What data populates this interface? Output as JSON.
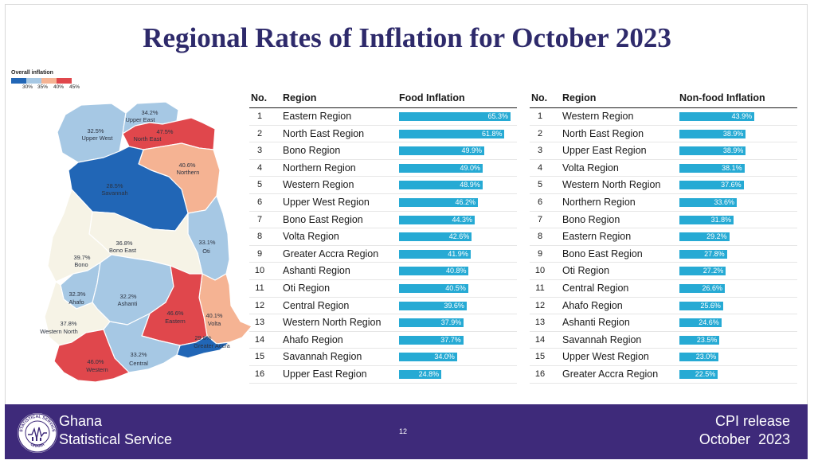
{
  "slide": {
    "title": "Regional Rates of Inflation for October 2023",
    "page_number": "12"
  },
  "map_legend": {
    "title": "Overall inflation",
    "ticks": [
      "30%",
      "35%",
      "40%",
      "45%"
    ],
    "colors": [
      "#2166b6",
      "#a6c8e4",
      "#f5b393",
      "#e0474c"
    ]
  },
  "map": {
    "regions": [
      {
        "name": "Upper East",
        "value": "34.2%",
        "color": "#a6c8e4"
      },
      {
        "name": "Upper West",
        "value": "32.5%",
        "color": "#a6c8e4"
      },
      {
        "name": "North East",
        "value": "47.5%",
        "color": "#e0474c"
      },
      {
        "name": "Northern",
        "value": "40.6%",
        "color": "#f5b393"
      },
      {
        "name": "Savannah",
        "value": "28.5%",
        "color": "#2166b6"
      },
      {
        "name": "Bono East",
        "value": "36.8%",
        "color": "#f6f3e6"
      },
      {
        "name": "Oti",
        "value": "33.1%",
        "color": "#a6c8e4"
      },
      {
        "name": "Bono",
        "value": "39.7%",
        "color": "#f6f3e6"
      },
      {
        "name": "Ahafo",
        "value": "32.3%",
        "color": "#a6c8e4"
      },
      {
        "name": "Ashanti",
        "value": "32.2%",
        "color": "#a6c8e4"
      },
      {
        "name": "Eastern",
        "value": "46.6%",
        "color": "#e0474c"
      },
      {
        "name": "Volta",
        "value": "40.1%",
        "color": "#f5b393"
      },
      {
        "name": "Western North",
        "value": "37.8%",
        "color": "#f6f3e6"
      },
      {
        "name": "Greater Accra",
        "value": "29.8%",
        "color": "#2166b6"
      },
      {
        "name": "Central",
        "value": "33.2%",
        "color": "#a6c8e4"
      },
      {
        "name": "Western",
        "value": "46.0%",
        "color": "#e0474c"
      }
    ]
  },
  "food_table": {
    "headers": {
      "no": "No.",
      "region": "Region",
      "value": "Food Inflation"
    },
    "rows": [
      {
        "no": "1",
        "region": "Eastern Region",
        "label": "65.3%"
      },
      {
        "no": "2",
        "region": "North East Region",
        "label": "61.8%"
      },
      {
        "no": "3",
        "region": "Bono Region",
        "label": "49.9%"
      },
      {
        "no": "4",
        "region": "Northern Region",
        "label": "49.0%"
      },
      {
        "no": "5",
        "region": "Western Region",
        "label": "48.9%"
      },
      {
        "no": "6",
        "region": "Upper West Region",
        "label": "46.2%"
      },
      {
        "no": "7",
        "region": "Bono East Region",
        "label": "44.3%"
      },
      {
        "no": "8",
        "region": "Volta Region",
        "label": "42.6%"
      },
      {
        "no": "9",
        "region": "Greater Accra Region",
        "label": "41.9%"
      },
      {
        "no": "10",
        "region": "Ashanti Region",
        "label": "40.8%"
      },
      {
        "no": "11",
        "region": "Oti Region",
        "label": "40.5%"
      },
      {
        "no": "12",
        "region": "Central Region",
        "label": "39.6%"
      },
      {
        "no": "13",
        "region": "Western North Region",
        "label": "37.9%"
      },
      {
        "no": "14",
        "region": "Ahafo Region",
        "label": "37.7%"
      },
      {
        "no": "15",
        "region": "Savannah Region",
        "label": "34.0%"
      },
      {
        "no": "16",
        "region": "Upper East Region",
        "label": "24.8%"
      }
    ]
  },
  "nonfood_table": {
    "headers": {
      "no": "No.",
      "region": "Region",
      "value": "Non-food Inflation"
    },
    "rows": [
      {
        "no": "1",
        "region": "Western Region",
        "label": "43.9%"
      },
      {
        "no": "2",
        "region": "North East Region",
        "label": "38.9%"
      },
      {
        "no": "3",
        "region": "Upper East Region",
        "label": "38.9%"
      },
      {
        "no": "4",
        "region": "Volta Region",
        "label": "38.1%"
      },
      {
        "no": "5",
        "region": "Western North Region",
        "label": "37.6%"
      },
      {
        "no": "6",
        "region": "Northern Region",
        "label": "33.6%"
      },
      {
        "no": "7",
        "region": "Bono Region",
        "label": "31.8%"
      },
      {
        "no": "8",
        "region": "Eastern Region",
        "label": "29.2%"
      },
      {
        "no": "9",
        "region": "Bono East Region",
        "label": "27.8%"
      },
      {
        "no": "10",
        "region": "Oti Region",
        "label": "27.2%"
      },
      {
        "no": "11",
        "region": "Central Region",
        "label": "26.6%"
      },
      {
        "no": "12",
        "region": "Ahafo Region",
        "label": "25.6%"
      },
      {
        "no": "13",
        "region": "Ashanti Region",
        "label": "24.6%"
      },
      {
        "no": "14",
        "region": "Savannah Region",
        "label": "23.5%"
      },
      {
        "no": "15",
        "region": "Upper West Region",
        "label": "23.0%"
      },
      {
        "no": "16",
        "region": "Greater Accra Region",
        "label": "22.5%"
      }
    ]
  },
  "footer": {
    "org_line1": "Ghana",
    "org_line2": "Statistical Service",
    "logo_text_top": "STATISTICAL SERVICE",
    "logo_text_bottom": "GHANA",
    "release_line1": "CPI release",
    "release_line2": "October  2023",
    "background": "#3e2a7a"
  },
  "chart_data": [
    {
      "type": "bar",
      "orientation": "horizontal",
      "categories": [
        "Eastern Region",
        "North East Region",
        "Bono Region",
        "Northern Region",
        "Western Region",
        "Upper West Region",
        "Bono East Region",
        "Volta Region",
        "Greater Accra Region",
        "Ashanti Region",
        "Oti Region",
        "Central Region",
        "Western North Region",
        "Ahafo Region",
        "Savannah Region",
        "Upper East Region"
      ],
      "series": [
        {
          "name": "Food Inflation",
          "values": [
            65.3,
            61.8,
            49.9,
            49.0,
            48.9,
            46.2,
            44.3,
            42.6,
            41.9,
            40.8,
            40.5,
            39.6,
            37.9,
            37.7,
            34.0,
            24.8
          ]
        }
      ],
      "color": "#26aad4"
    },
    {
      "type": "bar",
      "orientation": "horizontal",
      "categories": [
        "Western Region",
        "North East Region",
        "Upper East Region",
        "Volta Region",
        "Western North Region",
        "Northern Region",
        "Bono Region",
        "Eastern Region",
        "Bono East Region",
        "Oti Region",
        "Central Region",
        "Ahafo Region",
        "Ashanti Region",
        "Savannah Region",
        "Upper West Region",
        "Greater Accra Region"
      ],
      "series": [
        {
          "name": "Non-food Inflation",
          "values": [
            43.9,
            38.9,
            38.9,
            38.1,
            37.6,
            33.6,
            31.8,
            29.2,
            27.8,
            27.2,
            26.6,
            25.6,
            24.6,
            23.5,
            23.0,
            22.5
          ]
        }
      ],
      "color": "#26aad4"
    }
  ]
}
